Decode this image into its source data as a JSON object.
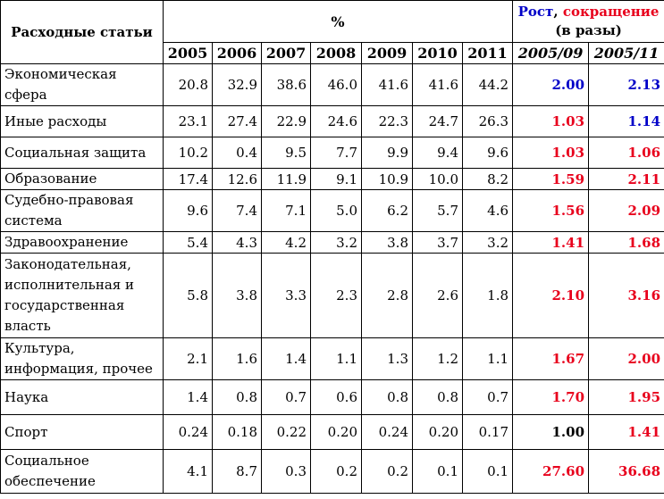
{
  "header": {
    "row_title": "Расходные статьи",
    "percent_label": "%",
    "growth_label": "Рост",
    "comma": ", ",
    "decline_label": "сокращение",
    "times_label": "(в разы)",
    "years": [
      "2005",
      "2006",
      "2007",
      "2008",
      "2009",
      "2010",
      "2011"
    ],
    "ratio_headers": [
      "2005/09",
      "2005/11"
    ]
  },
  "colors": {
    "growth": "#0000c8",
    "decline": "#e8001c",
    "neutral": "#000000"
  },
  "rows": [
    {
      "label": "Экономическая сфера",
      "values": [
        "20.8",
        "32.9",
        "38.6",
        "46.0",
        "41.6",
        "41.6",
        "44.2"
      ],
      "r1": "2.00",
      "r1_color": "blue",
      "r2": "2.13",
      "r2_color": "blue",
      "height": 47
    },
    {
      "label": "Иные расходы",
      "values": [
        "23.1",
        "27.4",
        "22.9",
        "24.6",
        "22.3",
        "24.7",
        "26.3"
      ],
      "r1": "1.03",
      "r1_color": "red",
      "r2": "1.14",
      "r2_color": "blue",
      "height": 35
    },
    {
      "label": "Социальная защита",
      "values": [
        "10.2",
        "0.4",
        "9.5",
        "7.7",
        "9.9",
        "9.4",
        "9.6"
      ],
      "r1": "1.03",
      "r1_color": "red",
      "r2": "1.06",
      "r2_color": "red",
      "height": 35
    },
    {
      "label": "Образование",
      "values": [
        "17.4",
        "12.6",
        "11.9",
        "9.1",
        "10.9",
        "10.0",
        "8.2"
      ],
      "r1": "1.59",
      "r1_color": "red",
      "r2": "2.11",
      "r2_color": "red",
      "height": 24
    },
    {
      "label": "Судебно-правовая система",
      "values": [
        "9.6",
        "7.4",
        "7.1",
        "5.0",
        "6.2",
        "5.7",
        "4.6"
      ],
      "r1": "1.56",
      "r1_color": "red",
      "r2": "2.09",
      "r2_color": "red",
      "height": 47
    },
    {
      "label": "Здравоохранение",
      "values": [
        "5.4",
        "4.3",
        "4.2",
        "3.2",
        "3.8",
        "3.7",
        "3.2"
      ],
      "r1": "1.41",
      "r1_color": "red",
      "r2": "1.68",
      "r2_color": "red",
      "height": 24
    },
    {
      "label": "Законодательная, исполнительная и государственная власть",
      "values": [
        "5.8",
        "3.8",
        "3.3",
        "2.3",
        "2.8",
        "2.6",
        "1.8"
      ],
      "r1": "2.10",
      "r1_color": "red",
      "r2": "3.16",
      "r2_color": "red",
      "height": 95
    },
    {
      "label": "Культура, информация, прочее",
      "values": [
        "2.1",
        "1.6",
        "1.4",
        "1.1",
        "1.3",
        "1.2",
        "1.1"
      ],
      "r1": "1.67",
      "r1_color": "red",
      "r2": "2.00",
      "r2_color": "red",
      "height": 47
    },
    {
      "label": "Наука",
      "values": [
        "1.4",
        "0.8",
        "0.7",
        "0.6",
        "0.8",
        "0.8",
        "0.7"
      ],
      "r1": "1.70",
      "r1_color": "red",
      "r2": "1.95",
      "r2_color": "red",
      "height": 39
    },
    {
      "label": "Спорт",
      "values": [
        "0.24",
        "0.18",
        "0.22",
        "0.20",
        "0.24",
        "0.20",
        "0.17"
      ],
      "r1": "1.00",
      "r1_color": "black",
      "r2": "1.41",
      "r2_color": "red",
      "height": 39
    },
    {
      "label": "Социальное обеспечение",
      "values": [
        "4.1",
        "8.7",
        "0.3",
        "0.2",
        "0.2",
        "0.1",
        "0.1"
      ],
      "r1": "27.60",
      "r1_color": "red",
      "r2": "36.68",
      "r2_color": "red",
      "height": 49
    }
  ]
}
